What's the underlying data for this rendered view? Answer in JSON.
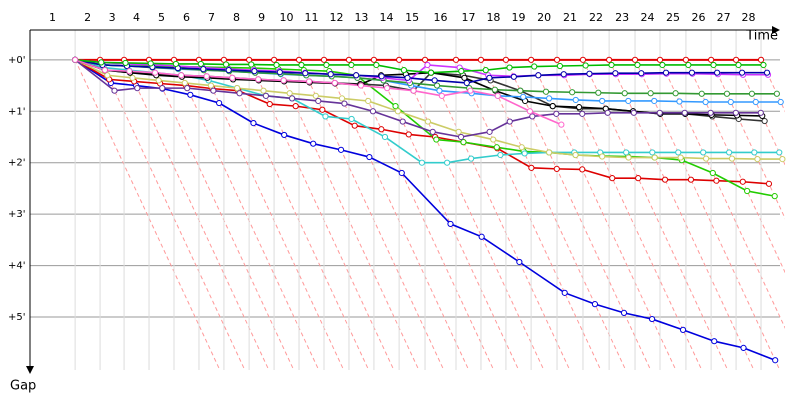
{
  "chart_data": {
    "type": "gap",
    "x_label": "Time",
    "y_label": "Gap",
    "laps": [
      "1",
      "2",
      "3",
      "4",
      "5",
      "6",
      "7",
      "8",
      "9",
      "10",
      "11",
      "12",
      "13",
      "14",
      "15",
      "16",
      "17",
      "18",
      "19",
      "20",
      "21",
      "22",
      "23",
      "24",
      "25",
      "26",
      "27",
      "28"
    ],
    "lap_ends": [
      1.88,
      2.92,
      3.92,
      4.96,
      6.0,
      7.04,
      8.08,
      9.13,
      10.17,
      11.21,
      12.25,
      13.29,
      14.33,
      15.38,
      16.46,
      17.75,
      18.79,
      19.83,
      20.88,
      21.96,
      23.04,
      24.13,
      25.21,
      26.25,
      27.33,
      28.38,
      29.42,
      30.46
    ],
    "xlim": [
      0,
      31.25
    ],
    "ylim": [
      -0.58,
      6.03
    ],
    "yticks": [
      {
        "value": 0,
        "label": "+0'"
      },
      {
        "value": 1,
        "label": "+1'"
      },
      {
        "value": 2,
        "label": "+2'"
      },
      {
        "value": 3,
        "label": "+3'"
      },
      {
        "value": 4,
        "label": "+4'"
      },
      {
        "value": 5,
        "label": "+5'"
      }
    ],
    "grid": true,
    "series": [
      {
        "color": "#e00000",
        "values": [
          0,
          0,
          0,
          0,
          0,
          0,
          0,
          0,
          0,
          0,
          0,
          0,
          0,
          0,
          0,
          0,
          0,
          0,
          0,
          0,
          0,
          0,
          0,
          0,
          0,
          0,
          0,
          0
        ]
      },
      {
        "color": "#0000dd",
        "values": [
          0,
          0.45,
          0.5,
          0.56,
          0.68,
          0.84,
          1.23,
          1.46,
          1.63,
          1.75,
          1.89,
          2.2,
          3.19,
          3.44,
          3.93,
          4.53,
          4.75,
          4.92,
          5.04,
          5.25,
          5.47,
          5.6,
          5.84,
          null,
          null,
          null,
          null,
          null
        ]
      },
      {
        "color": "#dd0000",
        "values": [
          0,
          0.38,
          0.42,
          0.46,
          0.5,
          0.56,
          0.6,
          0.86,
          0.9,
          0.97,
          1.28,
          1.35,
          1.45,
          1.5,
          1.6,
          1.72,
          2.1,
          2.12,
          2.13,
          2.3,
          2.3,
          2.33,
          2.33,
          2.35,
          2.37,
          2.41,
          null,
          null
        ]
      },
      {
        "color": "#22cc00",
        "values": [
          0,
          0.1,
          0.12,
          0.12,
          0.13,
          0.14,
          0.15,
          0.16,
          0.18,
          0.2,
          0.22,
          0.3,
          0.9,
          1.55,
          1.6,
          1.7,
          1.78,
          1.8,
          1.85,
          1.87,
          1.88,
          1.9,
          1.95,
          2.2,
          2.55,
          2.65,
          null,
          null
        ]
      },
      {
        "color": "#33cccc",
        "values": [
          0,
          0.15,
          0.2,
          0.25,
          0.3,
          0.4,
          0.55,
          0.7,
          0.75,
          1.1,
          1.15,
          1.5,
          2.0,
          2.0,
          1.92,
          1.85,
          1.82,
          1.8,
          1.8,
          1.8,
          1.8,
          1.8,
          1.8,
          1.8,
          1.8,
          1.8,
          1.8,
          null
        ]
      },
      {
        "color": "#cccc66",
        "values": [
          0,
          0.3,
          0.35,
          0.4,
          0.45,
          0.5,
          0.55,
          0.6,
          0.65,
          0.7,
          0.75,
          0.8,
          1.0,
          1.2,
          1.4,
          1.55,
          1.7,
          1.8,
          1.85,
          1.88,
          1.9,
          1.9,
          1.9,
          1.92,
          1.92,
          1.93,
          1.93,
          null
        ]
      },
      {
        "color": "#333333",
        "values": [
          0,
          0.2,
          0.25,
          0.28,
          0.3,
          0.32,
          0.35,
          0.38,
          0.4,
          0.42,
          0.45,
          0.47,
          0.5,
          0.6,
          0.25,
          0.3,
          0.4,
          0.6,
          0.9,
          0.95,
          0.95,
          1.0,
          1.05,
          1.05,
          1.1,
          1.15,
          1.19,
          null
        ]
      },
      {
        "color": "#000000",
        "values": [
          0,
          0.2,
          0.25,
          0.3,
          0.33,
          0.35,
          0.38,
          0.4,
          0.42,
          0.44,
          0.46,
          0.48,
          0.3,
          0.28,
          0.25,
          0.35,
          0.6,
          0.8,
          0.9,
          0.92,
          0.95,
          1.0,
          1.05,
          1.05,
          1.07,
          1.08,
          1.09,
          null
        ]
      },
      {
        "color": "#663399",
        "values": [
          0,
          0.6,
          0.55,
          0.55,
          0.55,
          0.6,
          0.65,
          0.7,
          0.75,
          0.8,
          0.85,
          1.0,
          1.2,
          1.4,
          1.5,
          1.4,
          1.2,
          1.1,
          1.05,
          1.05,
          1.03,
          1.03,
          1.03,
          1.03,
          1.03,
          1.03,
          1.03,
          null
        ]
      },
      {
        "color": "#3399ff",
        "values": [
          0,
          0.1,
          0.12,
          0.15,
          0.18,
          0.2,
          0.22,
          0.25,
          0.28,
          0.3,
          0.32,
          0.35,
          0.4,
          0.5,
          0.6,
          0.65,
          0.7,
          0.72,
          0.75,
          0.78,
          0.8,
          0.8,
          0.8,
          0.81,
          0.82,
          0.82,
          0.82,
          0.82
        ]
      },
      {
        "color": "#339933",
        "values": [
          0,
          0.1,
          0.12,
          0.15,
          0.17,
          0.2,
          0.22,
          0.25,
          0.27,
          0.3,
          0.32,
          0.35,
          0.4,
          0.45,
          0.5,
          0.55,
          0.58,
          0.6,
          0.62,
          0.63,
          0.64,
          0.65,
          0.65,
          0.65,
          0.66,
          0.66,
          0.66,
          0.66
        ]
      },
      {
        "color": "#cc33ff",
        "values": [
          0,
          0.05,
          0.08,
          0.1,
          0.12,
          0.15,
          0.18,
          0.2,
          0.22,
          0.25,
          0.28,
          0.3,
          0.35,
          0.4,
          0.1,
          0.15,
          0.3,
          0.32,
          0.3,
          0.3,
          0.28,
          0.28,
          0.28,
          0.27,
          0.27,
          0.28,
          0.29,
          0.29
        ]
      },
      {
        "color": "#0000aa",
        "values": [
          0,
          0.1,
          0.12,
          0.14,
          0.16,
          0.18,
          0.2,
          0.22,
          0.24,
          0.26,
          0.28,
          0.3,
          0.32,
          0.35,
          0.4,
          0.45,
          0.35,
          0.33,
          0.3,
          0.28,
          0.27,
          0.26,
          0.26,
          0.25,
          0.25,
          0.25,
          0.25,
          0.25
        ]
      },
      {
        "color": "#00bb00",
        "values": [
          0,
          0.05,
          0.06,
          0.07,
          0.08,
          0.08,
          0.09,
          0.09,
          0.1,
          0.1,
          0.1,
          0.1,
          0.1,
          0.2,
          0.25,
          0.22,
          0.2,
          0.15,
          0.13,
          0.12,
          0.11,
          0.1,
          0.1,
          0.1,
          0.1,
          0.1,
          0.1,
          0.1
        ]
      },
      {
        "color": "#ff66cc",
        "values": [
          0,
          0.2,
          0.22,
          0.25,
          0.3,
          0.32,
          0.35,
          0.38,
          0.4,
          0.42,
          0.45,
          0.5,
          0.55,
          0.6,
          0.7,
          0.6,
          0.7,
          1.0,
          1.26,
          null,
          null,
          null,
          null,
          null,
          null,
          null,
          null,
          null
        ]
      }
    ]
  }
}
